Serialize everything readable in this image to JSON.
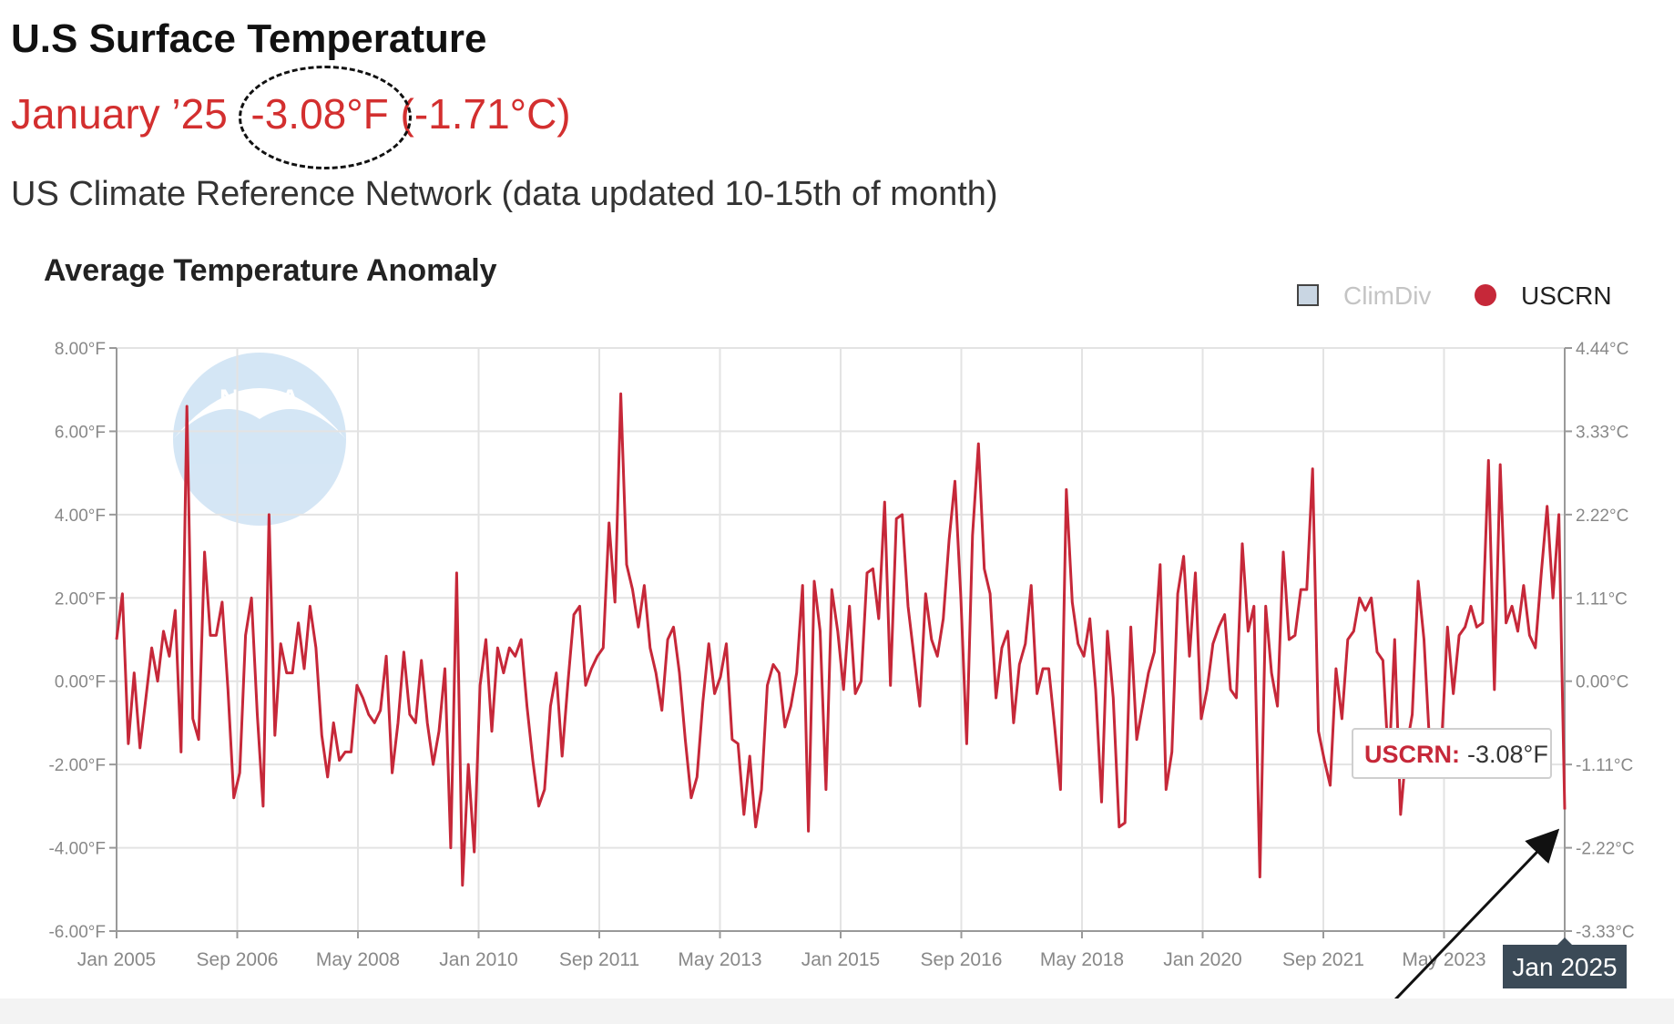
{
  "header": {
    "title": "U.S Surface Temperature",
    "month": "January ’25",
    "value_f": "-3.08°F",
    "value_c": "(-1.71°C)",
    "source": "US Climate Reference Network (data updated 10-15th of month)"
  },
  "colors": {
    "series": "#c62839",
    "accent_text": "#d32f2f",
    "legend_inactive": "#c9d6e3",
    "tooltip_label": "#c62839",
    "badge_bg": "#3b4a57"
  },
  "watermark": {
    "text": "NOAA"
  },
  "chart_data": {
    "type": "line",
    "title": "Average Temperature Anomaly",
    "legend": [
      {
        "name": "ClimDiv",
        "marker": "square",
        "active": false
      },
      {
        "name": "USCRN",
        "marker": "circle",
        "active": true
      }
    ],
    "legend_position": "top-right",
    "grid": true,
    "x_ticks": [
      "Jan 2005",
      "Sep 2006",
      "May 2008",
      "Jan 2010",
      "Sep 2011",
      "May 2013",
      "Jan 2015",
      "Sep 2016",
      "May 2018",
      "Jan 2020",
      "Sep 2021",
      "May 2023",
      "Jan 2025"
    ],
    "y_ticks_left": [
      "8.00°F",
      "6.00°F",
      "4.00°F",
      "2.00°F",
      "0.00°F",
      "-2.00°F",
      "-4.00°F",
      "-6.00°F"
    ],
    "y_ticks_right": [
      "4.44°C",
      "3.33°C",
      "2.22°C",
      "1.11°C",
      "0.00°C",
      "-1.11°C",
      "-2.22°C",
      "-3.33°C"
    ],
    "ylim": [
      -6,
      8
    ],
    "x_start": "Jan 2005",
    "x_end": "Jan 2025",
    "series": [
      {
        "name": "USCRN",
        "values": [
          1.0,
          2.1,
          -1.5,
          0.2,
          -1.6,
          -0.4,
          0.8,
          0.0,
          1.2,
          0.6,
          1.7,
          -1.7,
          6.6,
          -0.9,
          -1.4,
          3.1,
          1.1,
          1.1,
          1.9,
          -0.2,
          -2.8,
          -2.2,
          1.1,
          2.0,
          -0.8,
          -3.0,
          4.0,
          -1.3,
          0.9,
          0.2,
          0.2,
          1.4,
          0.3,
          1.8,
          0.8,
          -1.3,
          -2.3,
          -1.0,
          -1.9,
          -1.7,
          -1.7,
          -0.1,
          -0.4,
          -0.8,
          -1.0,
          -0.7,
          0.6,
          -2.2,
          -1.0,
          0.7,
          -0.8,
          -1.0,
          0.5,
          -1.0,
          -2.0,
          -1.2,
          0.3,
          -4.0,
          2.6,
          -4.9,
          -2.0,
          -4.1,
          -0.1,
          1.0,
          -1.2,
          0.8,
          0.2,
          0.8,
          0.6,
          1.0,
          -0.6,
          -1.9,
          -3.0,
          -2.6,
          -0.6,
          0.2,
          -1.8,
          0.0,
          1.6,
          1.8,
          -0.1,
          0.3,
          0.6,
          0.8,
          3.8,
          1.9,
          6.9,
          2.8,
          2.2,
          1.3,
          2.3,
          0.8,
          0.2,
          -0.7,
          1.0,
          1.3,
          0.2,
          -1.4,
          -2.8,
          -2.3,
          -0.5,
          0.9,
          -0.3,
          0.1,
          0.9,
          -1.4,
          -1.5,
          -3.2,
          -1.8,
          -3.5,
          -2.6,
          -0.1,
          0.4,
          0.2,
          -1.1,
          -0.6,
          0.2,
          2.3,
          -3.6,
          2.4,
          1.2,
          -2.6,
          2.2,
          1.2,
          -0.2,
          1.8,
          -0.3,
          0.0,
          2.6,
          2.7,
          1.5,
          4.3,
          -0.1,
          3.9,
          4.0,
          1.8,
          0.6,
          -0.6,
          2.1,
          1.0,
          0.6,
          1.5,
          3.4,
          4.8,
          2.0,
          -1.5,
          3.5,
          5.7,
          2.7,
          2.1,
          -0.4,
          0.8,
          1.2,
          -1.0,
          0.4,
          0.9,
          2.3,
          -0.3,
          0.3,
          0.3,
          -1.1,
          -2.6,
          4.6,
          1.9,
          0.9,
          0.6,
          1.5,
          -0.2,
          -2.9,
          1.2,
          -0.4,
          -3.5,
          -3.4,
          1.3,
          -1.4,
          -0.6,
          0.2,
          0.7,
          2.8,
          -2.6,
          -1.7,
          2.1,
          3.0,
          0.6,
          2.6,
          -0.9,
          -0.2,
          0.9,
          1.3,
          1.6,
          -0.2,
          -0.4,
          3.3,
          1.2,
          1.8,
          -4.7,
          1.8,
          0.2,
          -0.6,
          3.1,
          1.0,
          1.1,
          2.2,
          2.2,
          5.1,
          -1.2,
          -1.9,
          -2.5,
          0.3,
          -0.9,
          1.0,
          1.2,
          2.0,
          1.7,
          2.0,
          0.7,
          0.5,
          -2.1,
          1.0,
          -3.2,
          -1.6,
          -0.8,
          2.4,
          1.0,
          -1.6,
          -2.2,
          -1.5,
          1.3,
          -0.3,
          1.1,
          1.3,
          1.8,
          1.3,
          1.4,
          5.3,
          -0.2,
          5.2,
          1.4,
          1.8,
          1.2,
          2.3,
          1.1,
          0.8,
          2.6,
          4.2,
          2.0,
          4.0,
          -3.08
        ]
      }
    ],
    "tooltip": {
      "label": "USCRN:",
      "value": "-3.08°F"
    },
    "x_badge": "Jan 2025"
  }
}
